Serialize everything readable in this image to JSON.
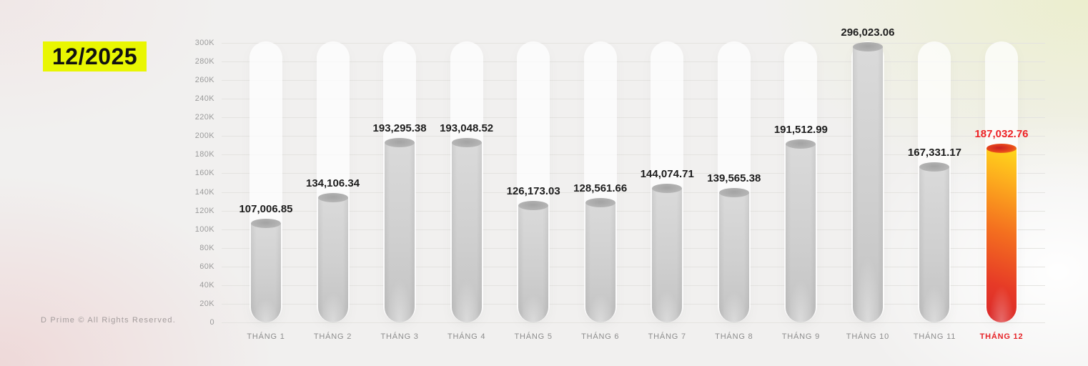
{
  "badge": {
    "period": "12/2025"
  },
  "footer": {
    "copyright": "D Prime © All Rights Reserved."
  },
  "chart_data": {
    "type": "bar",
    "title": "12/2025",
    "categories": [
      "THÁNG 1",
      "THÁNG 2",
      "THÁNG 3",
      "THÁNG 4",
      "THÁNG 5",
      "THÁNG 6",
      "THÁNG 7",
      "THÁNG 8",
      "THÁNG 9",
      "THÁNG 10",
      "THÁNG 11",
      "THÁNG 12"
    ],
    "values": [
      107006.85,
      134106.34,
      193295.38,
      193048.52,
      126173.03,
      128561.66,
      144074.71,
      139565.38,
      191512.99,
      296023.06,
      167331.17,
      187032.76
    ],
    "value_labels": [
      "107,006.85",
      "134,106.34",
      "193,295.38",
      "193,048.52",
      "126,173.03",
      "128,561.66",
      "144,074.71",
      "139,565.38",
      "191,512.99",
      "296,023.06",
      "167,331.17",
      "187,032.76"
    ],
    "xlabel": "",
    "ylabel": "",
    "ylim": [
      0,
      300000
    ],
    "ytick_step": 20000,
    "ytick_labels": [
      "0",
      "20K",
      "40K",
      "60K",
      "80K",
      "100K",
      "120K",
      "140K",
      "160K",
      "180K",
      "200K",
      "220K",
      "240K",
      "260K",
      "280K",
      "300K"
    ],
    "grid": true,
    "legend": false,
    "highlight_index": 11,
    "colors": {
      "bar_body": "#cfcfcf",
      "bar_cap": "#aaaaaa",
      "tube": "#ffffff",
      "highlight_red": "#d9282b",
      "highlight_orange": "#f4701f",
      "highlight_yellow": "#ffd91a",
      "highlight_text": "#ee2326",
      "badge_bg": "#e9f602",
      "label_text": "#1d1d1d",
      "axis_text": "#9b9b9b"
    }
  }
}
